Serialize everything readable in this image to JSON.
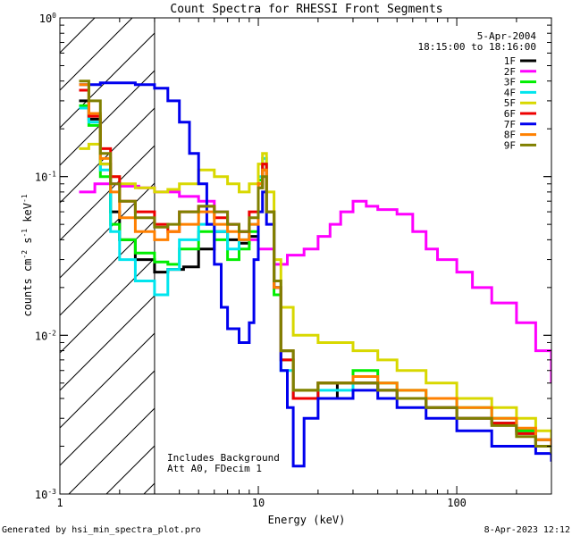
{
  "chart_data": {
    "type": "line",
    "title": "Count Spectra for RHESSI Front Segments",
    "xlabel": "Energy (keV)",
    "ylabel": "counts cm⁻² s⁻¹ keV⁻¹",
    "xscale": "log",
    "yscale": "log",
    "xlim": [
      1,
      300
    ],
    "ylim": [
      0.001,
      1
    ],
    "x_ticks": [
      {
        "value": 1,
        "label": "1"
      },
      {
        "value": 10,
        "label": "10"
      },
      {
        "value": 100,
        "label": "100"
      }
    ],
    "y_ticks": [
      {
        "value": 1,
        "base": "10",
        "exp": "0"
      },
      {
        "value": 0.1,
        "base": "10",
        "exp": "-1"
      },
      {
        "value": 0.01,
        "base": "10",
        "exp": "-2"
      },
      {
        "value": 0.001,
        "base": "10",
        "exp": "-3"
      }
    ],
    "shaded_region": {
      "x_from": 1,
      "x_to": 3,
      "pattern": "diagonal hatch"
    },
    "header_date": "5-Apr-2004",
    "header_time": "18:15:00 to 18:16:00",
    "annotation_lines": [
      "Includes Background",
      "Att A0, FDecim 1"
    ],
    "footer_left": "Generated by hsi_min_spectra_plot.pro",
    "footer_right": "8-Apr-2023 12:12",
    "series": [
      {
        "name": "1F",
        "color": "#000000",
        "points": [
          [
            1.25,
            0.3
          ],
          [
            1.4,
            0.23
          ],
          [
            1.6,
            0.12
          ],
          [
            1.8,
            0.06
          ],
          [
            2.0,
            0.04
          ],
          [
            2.4,
            0.03
          ],
          [
            3.0,
            0.025
          ],
          [
            3.5,
            0.026
          ],
          [
            4.2,
            0.027
          ],
          [
            5.0,
            0.035
          ],
          [
            6.0,
            0.045
          ],
          [
            7.0,
            0.04
          ],
          [
            8.0,
            0.038
          ],
          [
            9.0,
            0.042
          ],
          [
            10.0,
            0.085
          ],
          [
            10.5,
            0.11
          ],
          [
            11.0,
            0.06
          ],
          [
            12.0,
            0.02
          ],
          [
            13.0,
            0.008
          ],
          [
            15.0,
            0.004
          ],
          [
            20.0,
            0.005
          ],
          [
            25.0,
            0.004
          ],
          [
            30.0,
            0.005
          ],
          [
            40.0,
            0.0045
          ],
          [
            50.0,
            0.004
          ],
          [
            70.0,
            0.0035
          ],
          [
            100.0,
            0.003
          ],
          [
            150.0,
            0.0028
          ],
          [
            200.0,
            0.0025
          ],
          [
            250.0,
            0.0022
          ],
          [
            300.0,
            0.002
          ]
        ]
      },
      {
        "name": "2F",
        "color": "#ff00ff",
        "points": [
          [
            1.25,
            0.08
          ],
          [
            1.5,
            0.09
          ],
          [
            2.0,
            0.087
          ],
          [
            2.5,
            0.085
          ],
          [
            3.0,
            0.08
          ],
          [
            4.0,
            0.075
          ],
          [
            5.0,
            0.07
          ],
          [
            6.0,
            0.06
          ],
          [
            7.0,
            0.05
          ],
          [
            8.0,
            0.045
          ],
          [
            9.0,
            0.04
          ],
          [
            10.0,
            0.035
          ],
          [
            12.0,
            0.028
          ],
          [
            14.0,
            0.032
          ],
          [
            17.0,
            0.035
          ],
          [
            20.0,
            0.042
          ],
          [
            23.0,
            0.05
          ],
          [
            26.0,
            0.06
          ],
          [
            30.0,
            0.07
          ],
          [
            35.0,
            0.065
          ],
          [
            40.0,
            0.062
          ],
          [
            50.0,
            0.058
          ],
          [
            60.0,
            0.045
          ],
          [
            70.0,
            0.035
          ],
          [
            80.0,
            0.03
          ],
          [
            100.0,
            0.025
          ],
          [
            120.0,
            0.02
          ],
          [
            150.0,
            0.016
          ],
          [
            200.0,
            0.012
          ],
          [
            250.0,
            0.008
          ],
          [
            300.0,
            0.005
          ]
        ]
      },
      {
        "name": "3F",
        "color": "#00ee00",
        "points": [
          [
            1.25,
            0.28
          ],
          [
            1.4,
            0.21
          ],
          [
            1.6,
            0.1
          ],
          [
            1.8,
            0.05
          ],
          [
            2.0,
            0.04
          ],
          [
            2.4,
            0.033
          ],
          [
            3.0,
            0.029
          ],
          [
            3.5,
            0.028
          ],
          [
            4.0,
            0.035
          ],
          [
            5.0,
            0.045
          ],
          [
            6.0,
            0.04
          ],
          [
            7.0,
            0.03
          ],
          [
            8.0,
            0.035
          ],
          [
            9.0,
            0.045
          ],
          [
            10.0,
            0.095
          ],
          [
            10.5,
            0.12
          ],
          [
            11.0,
            0.06
          ],
          [
            12.0,
            0.018
          ],
          [
            13.0,
            0.007
          ],
          [
            15.0,
            0.0045
          ],
          [
            20.0,
            0.005
          ],
          [
            30.0,
            0.006
          ],
          [
            40.0,
            0.005
          ],
          [
            50.0,
            0.0045
          ],
          [
            70.0,
            0.004
          ],
          [
            100.0,
            0.0035
          ],
          [
            150.0,
            0.003
          ],
          [
            200.0,
            0.0025
          ],
          [
            250.0,
            0.002
          ],
          [
            300.0,
            0.0018
          ]
        ]
      },
      {
        "name": "4F",
        "color": "#00e5ee",
        "points": [
          [
            1.25,
            0.27
          ],
          [
            1.4,
            0.22
          ],
          [
            1.6,
            0.11
          ],
          [
            1.8,
            0.045
          ],
          [
            2.0,
            0.03
          ],
          [
            2.4,
            0.022
          ],
          [
            3.0,
            0.018
          ],
          [
            3.5,
            0.026
          ],
          [
            4.0,
            0.04
          ],
          [
            5.0,
            0.05
          ],
          [
            6.0,
            0.045
          ],
          [
            7.0,
            0.035
          ],
          [
            8.0,
            0.04
          ],
          [
            9.0,
            0.05
          ],
          [
            10.0,
            0.1
          ],
          [
            10.5,
            0.13
          ],
          [
            11.0,
            0.06
          ],
          [
            12.0,
            0.02
          ],
          [
            13.0,
            0.006
          ],
          [
            15.0,
            0.004
          ],
          [
            20.0,
            0.0045
          ],
          [
            30.0,
            0.005
          ],
          [
            40.0,
            0.0045
          ],
          [
            50.0,
            0.004
          ],
          [
            70.0,
            0.0035
          ],
          [
            100.0,
            0.003
          ],
          [
            150.0,
            0.0028
          ],
          [
            200.0,
            0.0024
          ],
          [
            250.0,
            0.002
          ],
          [
            300.0,
            0.0018
          ]
        ]
      },
      {
        "name": "5F",
        "color": "#d8d800",
        "points": [
          [
            1.25,
            0.15
          ],
          [
            1.4,
            0.16
          ],
          [
            1.6,
            0.12
          ],
          [
            1.8,
            0.1
          ],
          [
            2.0,
            0.09
          ],
          [
            2.4,
            0.085
          ],
          [
            3.0,
            0.08
          ],
          [
            3.5,
            0.083
          ],
          [
            4.0,
            0.09
          ],
          [
            5.0,
            0.11
          ],
          [
            6.0,
            0.1
          ],
          [
            7.0,
            0.09
          ],
          [
            8.0,
            0.08
          ],
          [
            9.0,
            0.09
          ],
          [
            10.0,
            0.12
          ],
          [
            10.5,
            0.14
          ],
          [
            11.0,
            0.08
          ],
          [
            12.0,
            0.03
          ],
          [
            13.0,
            0.015
          ],
          [
            15.0,
            0.01
          ],
          [
            20.0,
            0.009
          ],
          [
            30.0,
            0.008
          ],
          [
            40.0,
            0.007
          ],
          [
            50.0,
            0.006
          ],
          [
            70.0,
            0.005
          ],
          [
            100.0,
            0.004
          ],
          [
            150.0,
            0.0035
          ],
          [
            200.0,
            0.003
          ],
          [
            250.0,
            0.0025
          ],
          [
            300.0,
            0.002
          ]
        ]
      },
      {
        "name": "6F",
        "color": "#ee0000",
        "points": [
          [
            1.25,
            0.35
          ],
          [
            1.4,
            0.24
          ],
          [
            1.6,
            0.15
          ],
          [
            1.8,
            0.1
          ],
          [
            2.0,
            0.07
          ],
          [
            2.4,
            0.06
          ],
          [
            3.0,
            0.05
          ],
          [
            3.5,
            0.045
          ],
          [
            4.0,
            0.06
          ],
          [
            5.0,
            0.065
          ],
          [
            6.0,
            0.055
          ],
          [
            7.0,
            0.05
          ],
          [
            8.0,
            0.045
          ],
          [
            9.0,
            0.06
          ],
          [
            10.0,
            0.09
          ],
          [
            10.5,
            0.12
          ],
          [
            11.0,
            0.06
          ],
          [
            12.0,
            0.02
          ],
          [
            13.0,
            0.007
          ],
          [
            15.0,
            0.004
          ],
          [
            20.0,
            0.005
          ],
          [
            30.0,
            0.005
          ],
          [
            40.0,
            0.0045
          ],
          [
            50.0,
            0.004
          ],
          [
            70.0,
            0.0035
          ],
          [
            100.0,
            0.003
          ],
          [
            150.0,
            0.0028
          ],
          [
            200.0,
            0.0024
          ],
          [
            250.0,
            0.002
          ],
          [
            300.0,
            0.0018
          ]
        ]
      },
      {
        "name": "7F",
        "color": "#0000ee",
        "points": [
          [
            1.25,
            0.38
          ],
          [
            1.6,
            0.39
          ],
          [
            2.0,
            0.39
          ],
          [
            2.4,
            0.38
          ],
          [
            3.0,
            0.36
          ],
          [
            3.5,
            0.3
          ],
          [
            4.0,
            0.22
          ],
          [
            4.5,
            0.14
          ],
          [
            5.0,
            0.09
          ],
          [
            5.5,
            0.05
          ],
          [
            6.0,
            0.028
          ],
          [
            6.5,
            0.015
          ],
          [
            7.0,
            0.011
          ],
          [
            8.0,
            0.009
          ],
          [
            9.0,
            0.012
          ],
          [
            9.5,
            0.03
          ],
          [
            10.0,
            0.06
          ],
          [
            10.5,
            0.08
          ],
          [
            11.0,
            0.05
          ],
          [
            12.0,
            0.02
          ],
          [
            13.0,
            0.006
          ],
          [
            14.0,
            0.0035
          ],
          [
            15.0,
            0.0015
          ],
          [
            17.0,
            0.003
          ],
          [
            20.0,
            0.004
          ],
          [
            30.0,
            0.0045
          ],
          [
            40.0,
            0.004
          ],
          [
            50.0,
            0.0035
          ],
          [
            70.0,
            0.003
          ],
          [
            100.0,
            0.0025
          ],
          [
            150.0,
            0.002
          ],
          [
            200.0,
            0.002
          ],
          [
            250.0,
            0.0018
          ],
          [
            300.0,
            0.0016
          ]
        ]
      },
      {
        "name": "8F",
        "color": "#ff8000",
        "points": [
          [
            1.25,
            0.38
          ],
          [
            1.4,
            0.25
          ],
          [
            1.6,
            0.13
          ],
          [
            1.8,
            0.08
          ],
          [
            2.0,
            0.055
          ],
          [
            2.4,
            0.045
          ],
          [
            3.0,
            0.04
          ],
          [
            3.5,
            0.045
          ],
          [
            4.0,
            0.05
          ],
          [
            5.0,
            0.06
          ],
          [
            6.0,
            0.05
          ],
          [
            7.0,
            0.045
          ],
          [
            8.0,
            0.04
          ],
          [
            9.0,
            0.05
          ],
          [
            10.0,
            0.09
          ],
          [
            10.5,
            0.11
          ],
          [
            11.0,
            0.06
          ],
          [
            12.0,
            0.02
          ],
          [
            13.0,
            0.008
          ],
          [
            15.0,
            0.0045
          ],
          [
            20.0,
            0.005
          ],
          [
            30.0,
            0.0055
          ],
          [
            40.0,
            0.005
          ],
          [
            50.0,
            0.0045
          ],
          [
            70.0,
            0.004
          ],
          [
            100.0,
            0.0035
          ],
          [
            150.0,
            0.003
          ],
          [
            200.0,
            0.0026
          ],
          [
            250.0,
            0.0022
          ],
          [
            300.0,
            0.002
          ]
        ]
      },
      {
        "name": "9F",
        "color": "#808000",
        "points": [
          [
            1.25,
            0.4
          ],
          [
            1.4,
            0.3
          ],
          [
            1.6,
            0.14
          ],
          [
            1.8,
            0.09
          ],
          [
            2.0,
            0.07
          ],
          [
            2.4,
            0.055
          ],
          [
            3.0,
            0.048
          ],
          [
            3.5,
            0.05
          ],
          [
            4.0,
            0.06
          ],
          [
            5.0,
            0.065
          ],
          [
            6.0,
            0.06
          ],
          [
            7.0,
            0.05
          ],
          [
            8.0,
            0.045
          ],
          [
            9.0,
            0.055
          ],
          [
            10.0,
            0.085
          ],
          [
            10.5,
            0.1
          ],
          [
            11.0,
            0.06
          ],
          [
            12.0,
            0.022
          ],
          [
            13.0,
            0.008
          ],
          [
            15.0,
            0.0045
          ],
          [
            20.0,
            0.005
          ],
          [
            30.0,
            0.005
          ],
          [
            40.0,
            0.0045
          ],
          [
            50.0,
            0.004
          ],
          [
            70.0,
            0.0035
          ],
          [
            100.0,
            0.003
          ],
          [
            150.0,
            0.0027
          ],
          [
            200.0,
            0.0023
          ],
          [
            250.0,
            0.002
          ],
          [
            300.0,
            0.0018
          ]
        ]
      }
    ]
  }
}
